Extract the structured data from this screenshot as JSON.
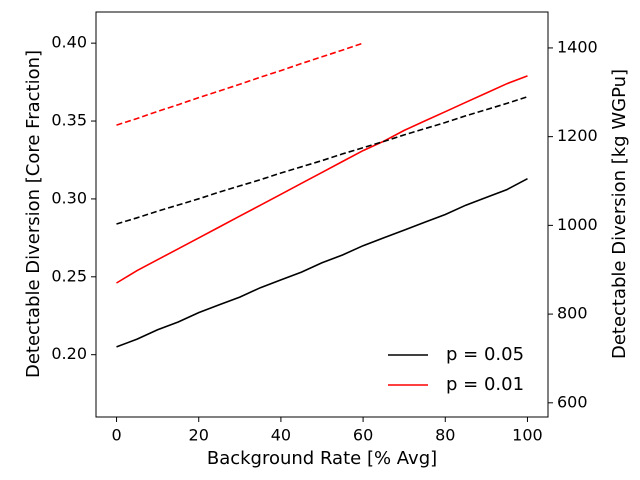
{
  "chart_data": {
    "type": "line",
    "xlabel": "Background Rate [% Avg]",
    "ylabel": "Detectable Diversion [Core Fraction]",
    "y2label": "Detectable Diversion [kg WGPu]",
    "x": [
      0,
      5,
      10,
      15,
      20,
      25,
      30,
      35,
      40,
      45,
      50,
      55,
      60,
      65,
      70,
      75,
      80,
      85,
      90,
      95,
      100
    ],
    "series": [
      {
        "name": "p = 0.05",
        "color": "#000000",
        "dash": false,
        "values": [
          0.205,
          0.21,
          0.216,
          0.221,
          0.227,
          0.232,
          0.237,
          0.243,
          0.248,
          0.253,
          0.259,
          0.264,
          0.27,
          0.275,
          0.28,
          0.285,
          0.29,
          0.296,
          0.301,
          0.306,
          0.313
        ]
      },
      {
        "name": "p = 0.01",
        "color": "#ff0000",
        "dash": false,
        "values": [
          0.246,
          0.254,
          0.261,
          0.268,
          0.275,
          0.282,
          0.289,
          0.296,
          0.303,
          0.31,
          0.317,
          0.324,
          0.331,
          0.337,
          0.344,
          0.35,
          0.356,
          0.362,
          0.368,
          0.374,
          0.379
        ]
      },
      {
        "color": "#000000",
        "dash": true,
        "axis": "y2",
        "values": [
          1003,
          1017,
          1032,
          1046,
          1060,
          1075,
          1089,
          1103,
          1118,
          1132,
          1146,
          1161,
          1175,
          1189,
          1204,
          1218,
          1232,
          1247,
          1261,
          1275,
          1290
        ]
      },
      {
        "color": "#ff0000",
        "dash": true,
        "axis": "y2",
        "values": [
          1226,
          1241,
          1257,
          1272,
          1288,
          1303,
          1318,
          1334,
          1349,
          1365,
          1380,
          1395,
          1411,
          null,
          null,
          null,
          null,
          null,
          null,
          null,
          null
        ]
      }
    ],
    "xlim": [
      -5,
      105
    ],
    "xticks": [
      0,
      20,
      40,
      60,
      80,
      100
    ],
    "ylim": [
      0.16,
      0.42
    ],
    "yticks": [
      {
        "value": 0.2,
        "label": "0.20"
      },
      0.25,
      {
        "value": 0.3,
        "label": "0.30"
      },
      0.35,
      {
        "value": 0.4,
        "label": "0.40"
      }
    ],
    "y2lim": [
      568,
      1481
    ],
    "y2ticks": [
      600,
      800,
      1000,
      1200,
      1400
    ],
    "legend": "lower right",
    "grid": false
  }
}
